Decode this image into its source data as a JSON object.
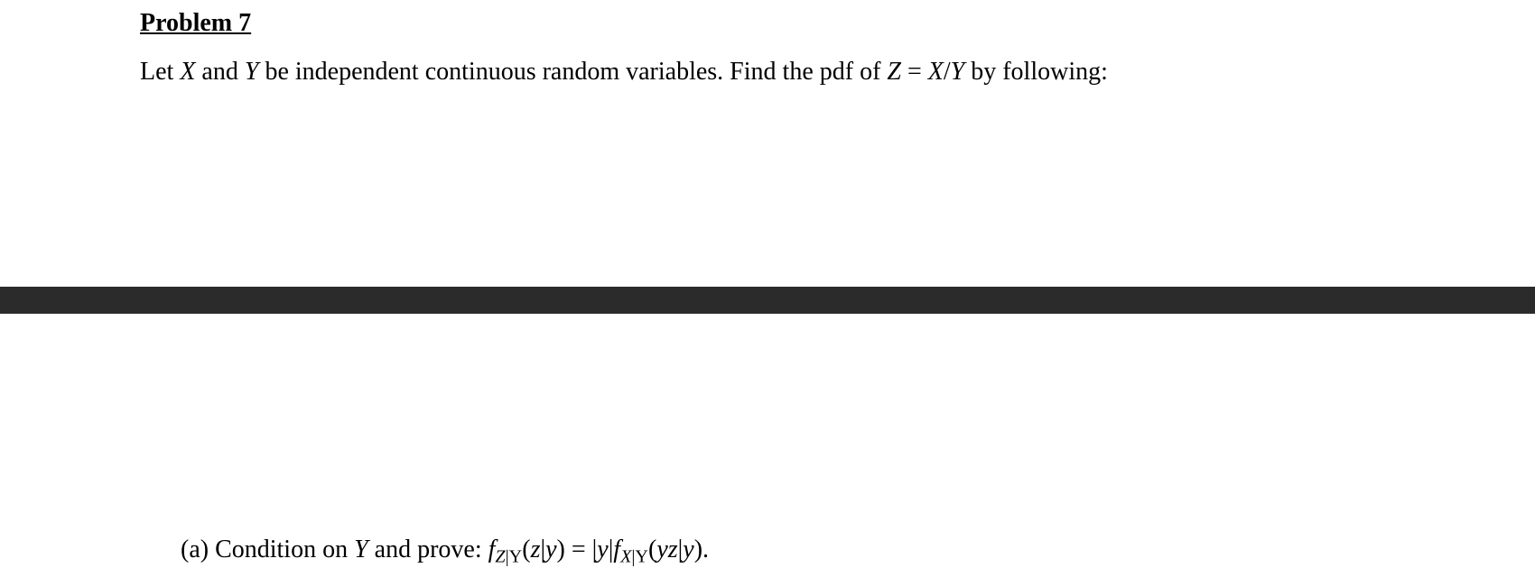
{
  "heading": "Problem 7",
  "prompt": {
    "lead": "Let ",
    "X": "X",
    "and": " and ",
    "Y": "Y",
    "mid": " be independent continuous random variables. Find the pdf of ",
    "Z": "Z",
    "eq": " = ",
    "XoverY_X": "X",
    "XoverY_slash": "/",
    "XoverY_Y": "Y",
    "tail": "  by following:"
  },
  "partA": {
    "label": "(a)  Condition on ",
    "Y": "Y",
    "mid": " and prove: ",
    "f": "f",
    "subZ": "Z",
    "subBarY1": "|Y",
    "open1": "(",
    "z1": "z",
    "bar1": "|",
    "y1": "y",
    "close1": ")",
    "eq": " = ",
    "absOpen": "|",
    "yabs": "y",
    "absClose": "|",
    "f2": "f",
    "subX": "X",
    "subBarY2": "|Y",
    "open2": "(",
    "yz_y": "y",
    "yz_z": "z",
    "bar2": "|",
    "y2": "y",
    "close2": ").",
    "period": ""
  }
}
